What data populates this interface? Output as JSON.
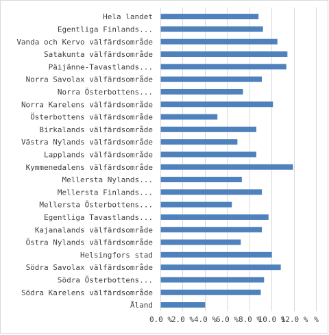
{
  "chart_data": {
    "type": "bar",
    "orientation": "horizontal",
    "title": "",
    "xlabel": "",
    "ylabel": "",
    "xlim": [
      0,
      14
    ],
    "grid": "vertical",
    "legend": "none",
    "bar_color": "#4f81bd",
    "grid_color": "#d9d9d9",
    "categories": [
      "Hela landet",
      "Egentliga Finlands...",
      "Vanda och Kervo välfärdsområde",
      "Satakunta välfärdsområde",
      "Päijänne-Tavastlands...",
      "Norra Savolax välfärdsområde",
      "Norra Österbottens...",
      "Norra Karelens välfärdsområde",
      "Österbottens välfärdsområde",
      "Birkalands välfärdsområde",
      "Västra Nylands välfärdsområde",
      "Lapplands välfärdsområde",
      "Kymmenedalens välfärdsområde",
      "Mellersta Nylands...",
      "Mellersta Finlands...",
      "Mellersta Österbottens...",
      "Egentliga Tavastlands...",
      "Kajanalands välfärdsområde",
      "Östra Nylands välfärdsområde",
      "Helsingfors stad",
      "Södra Savolax välfärdsområde",
      "Södra Österbottens...",
      "Södra Karelens välfärdsområde",
      "Åland"
    ],
    "values": [
      8.8,
      9.2,
      10.5,
      11.4,
      11.3,
      9.1,
      7.4,
      10.1,
      5.1,
      8.6,
      6.9,
      8.6,
      11.9,
      7.3,
      9.1,
      6.4,
      9.7,
      9.1,
      7.2,
      10.0,
      10.8,
      9.3,
      9.0,
      4.0
    ],
    "x_ticks": [
      {
        "value": 0,
        "label": "0.0 %"
      },
      {
        "value": 2,
        "label": "2.0 %"
      },
      {
        "value": 4,
        "label": "4.0 %"
      },
      {
        "value": 6,
        "label": "6.0 %"
      },
      {
        "value": 8,
        "label": "8.0 %"
      },
      {
        "value": 10,
        "label": "10.0 %"
      },
      {
        "value": 12,
        "label": "12.0 %"
      },
      {
        "value": 14,
        "label": "%"
      }
    ]
  }
}
